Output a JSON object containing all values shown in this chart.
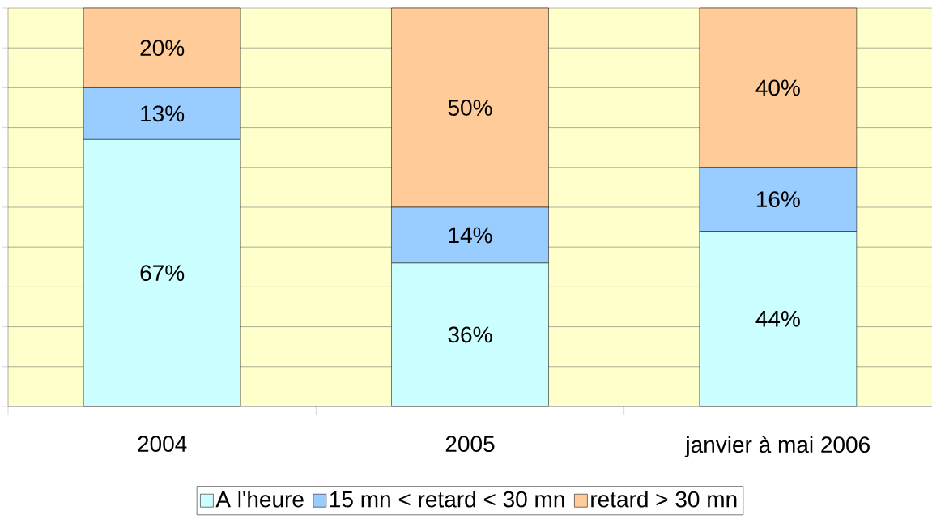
{
  "chart_data": {
    "type": "bar",
    "stacked": true,
    "categories": [
      "2004",
      "2005",
      "janvier à mai 2006"
    ],
    "series": [
      {
        "name": "A l'heure",
        "color": "#ccffff",
        "values": [
          67,
          36,
          44
        ],
        "value_labels": [
          "67%",
          "36%",
          "44%"
        ]
      },
      {
        "name": "15 mn < retard < 30 mn",
        "color": "#99ccff",
        "values": [
          13,
          14,
          16
        ],
        "value_labels": [
          "13%",
          "14%",
          "16%"
        ]
      },
      {
        "name": "retard > 30 mn",
        "color": "#ffcc99",
        "values": [
          20,
          50,
          40
        ],
        "value_labels": [
          "20%",
          "50%",
          "40%"
        ]
      }
    ],
    "ylim": [
      0,
      100
    ],
    "yticks": [
      {
        "value": 0,
        "label": null
      },
      {
        "value": 10,
        "label": null
      },
      {
        "value": 20,
        "label": null
      },
      {
        "value": 30,
        "label": null
      },
      {
        "value": 40,
        "label": null
      },
      {
        "value": 50,
        "label": null
      },
      {
        "value": 60,
        "label": null
      },
      {
        "value": 70,
        "label": null
      },
      {
        "value": 80,
        "label": null
      },
      {
        "value": 90,
        "label": null
      },
      {
        "value": 100,
        "label": null
      }
    ],
    "tick_labels": "x",
    "grid": "y",
    "legend": "bottom"
  }
}
